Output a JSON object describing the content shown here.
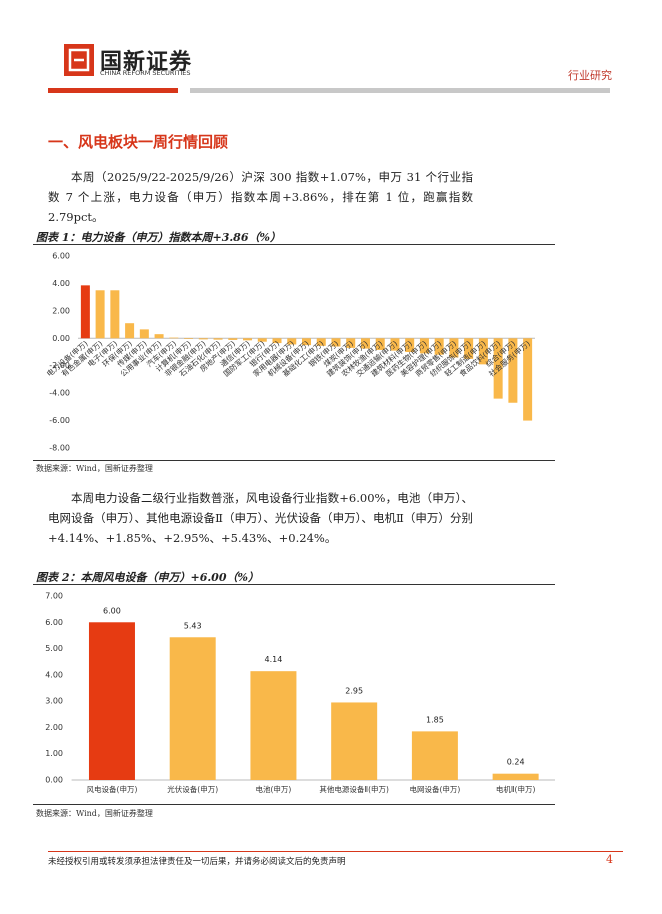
{
  "header": {
    "logo_name": "国新证券",
    "logo_subtitle": "CHINA REFORM SECURITIES",
    "category": "行业研究"
  },
  "section_title": "一、风电板块一周行情回顾",
  "paragraphs": [
    "本周（2025/9/22-2025/9/26）沪深 300 指数+1.07%，申万 31 个行业指数 7 个上涨，电力设备（申万）指数本周+3.86%，排在第 1 位，跑赢指数 2.79pct。",
    "本周电力设备二级行业指数普涨，风电设备行业指数+6.00%，电池（申万）、电网设备（申万）、其他电源设备Ⅱ（申万）、光伏设备（申万）、电机Ⅱ（申万）分别+4.14%、+1.85%、+2.95%、+5.43%、+0.24%。"
  ],
  "chart_data": [
    {
      "type": "bar",
      "title": "图表 1：电力设备（申万）指数本周+3.86（%）",
      "categories": [
        "电力设备(申万)",
        "有色金属(申万)",
        "电子(申万)",
        "环保(申万)",
        "传媒(申万)",
        "公用事业(申万)",
        "汽车(申万)",
        "计算机(申万)",
        "非银金融(申万)",
        "石油石化(申万)",
        "房地产(申万)",
        "通信(申万)",
        "国防军工(申万)",
        "银行(申万)",
        "家用电器(申万)",
        "机械设备(申万)",
        "基础化工(申万)",
        "钢铁(申万)",
        "煤炭(申万)",
        "建筑装饰(申万)",
        "农林牧渔(申万)",
        "交通运输(申万)",
        "建筑材料(申万)",
        "医药生物(申万)",
        "美容护理(申万)",
        "商贸零售(申万)",
        "纺织服饰(申万)",
        "轻工制造(申万)",
        "食品饮料(申万)",
        "综合(申万)",
        "社会服务(申万)"
      ],
      "values": [
        3.86,
        3.5,
        3.5,
        1.1,
        0.65,
        0.3,
        0.05,
        -0.05,
        -0.08,
        -0.1,
        -0.12,
        -0.15,
        -0.25,
        -0.35,
        -0.45,
        -0.5,
        -0.55,
        -0.6,
        -0.7,
        -0.75,
        -0.85,
        -0.9,
        -1.0,
        -1.1,
        -1.2,
        -1.4,
        -1.5,
        -1.9,
        -4.4,
        -4.7,
        -6.0
      ],
      "colors": [
        "#e63b12",
        "#f9b84a",
        "#f9b84a",
        "#f9b84a",
        "#f9b84a",
        "#f9b84a",
        "#f9b84a",
        "#f9b84a",
        "#f9b84a",
        "#f9b84a",
        "#f9b84a",
        "#f9b84a",
        "#f9b84a",
        "#f9b84a",
        "#f9b84a",
        "#f9b84a",
        "#f9b84a",
        "#f9b84a",
        "#f9b84a",
        "#f9b84a",
        "#f9b84a",
        "#f9b84a",
        "#f9b84a",
        "#f9b84a",
        "#f9b84a",
        "#f9b84a",
        "#f9b84a",
        "#f9b84a",
        "#f9b84a",
        "#f9b84a",
        "#f9b84a"
      ],
      "ylim": [
        -8,
        6
      ],
      "yticks": [
        {
          "value": -8,
          "label": "-8.00"
        },
        {
          "value": -6,
          "label": "-6.00"
        },
        {
          "value": -4,
          "label": "-4.00"
        },
        {
          "value": -2,
          "label": "-2.00"
        },
        {
          "value": 0,
          "label": "0.00"
        },
        {
          "value": 2,
          "label": "2.00"
        },
        {
          "value": 4,
          "label": "4.00"
        },
        {
          "value": 6,
          "label": "6.00"
        }
      ],
      "source": "数据来源：Wind，国新证券整理"
    },
    {
      "type": "bar",
      "title": "图表 2：本周风电设备（申万）+6.00（%）",
      "categories": [
        "风电设备(申万)",
        "光伏设备(申万)",
        "电池(申万)",
        "其他电源设备Ⅱ(申万)",
        "电网设备(申万)",
        "电机Ⅱ(申万)"
      ],
      "values": [
        6.0,
        5.43,
        4.14,
        2.95,
        1.85,
        0.24
      ],
      "value_labels": [
        "6.00",
        "5.43",
        "4.14",
        "2.95",
        "1.85",
        "0.24"
      ],
      "colors": [
        "#e63b12",
        "#f9b84a",
        "#f9b84a",
        "#f9b84a",
        "#f9b84a",
        "#f9b84a"
      ],
      "ylim": [
        0,
        7
      ],
      "yticks": [
        {
          "value": 0,
          "label": "0.00"
        },
        {
          "value": 1,
          "label": "1.00"
        },
        {
          "value": 2,
          "label": "2.00"
        },
        {
          "value": 3,
          "label": "3.00"
        },
        {
          "value": 4,
          "label": "4.00"
        },
        {
          "value": 5,
          "label": "5.00"
        },
        {
          "value": 6,
          "label": "6.00"
        },
        {
          "value": 7,
          "label": "7.00"
        }
      ],
      "source": "数据来源：Wind，国新证券整理"
    }
  ],
  "footer": {
    "disclaimer": "未经授权引用或转发须承担法律责任及一切后果，并请务必阅读文后的免责声明",
    "page": "4"
  }
}
